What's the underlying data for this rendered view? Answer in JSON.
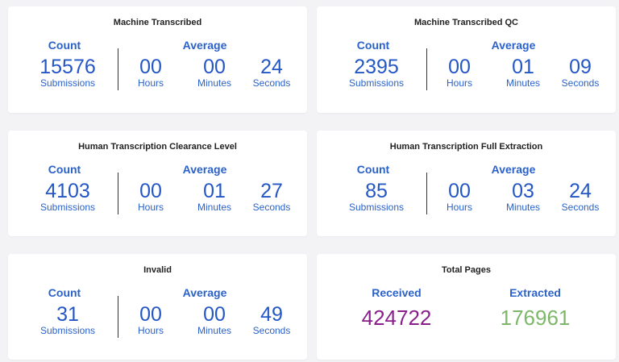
{
  "cards": [
    {
      "title": "Machine Transcribed",
      "count_header": "Count",
      "average_header": "Average",
      "count": "15576",
      "count_label": "Submissions",
      "hours": "00",
      "hours_label": "Hours",
      "minutes": "00",
      "minutes_label": "Minutes",
      "seconds": "24",
      "seconds_label": "Seconds"
    },
    {
      "title": "Machine Transcribed QC",
      "count_header": "Count",
      "average_header": "Average",
      "count": "2395",
      "count_label": "Submissions",
      "hours": "00",
      "hours_label": "Hours",
      "minutes": "01",
      "minutes_label": "Minutes",
      "seconds": "09",
      "seconds_label": "Seconds"
    },
    {
      "title": "Human Transcription Clearance Level",
      "count_header": "Count",
      "average_header": "Average",
      "count": "4103",
      "count_label": "Submissions",
      "hours": "00",
      "hours_label": "Hours",
      "minutes": "01",
      "minutes_label": "Minutes",
      "seconds": "27",
      "seconds_label": "Seconds"
    },
    {
      "title": "Human Transcription Full Extraction",
      "count_header": "Count",
      "average_header": "Average",
      "count": "85",
      "count_label": "Submissions",
      "hours": "00",
      "hours_label": "Hours",
      "minutes": "03",
      "minutes_label": "Minutes",
      "seconds": "24",
      "seconds_label": "Seconds"
    },
    {
      "title": "Invalid",
      "count_header": "Count",
      "average_header": "Average",
      "count": "31",
      "count_label": "Submissions",
      "hours": "00",
      "hours_label": "Hours",
      "minutes": "00",
      "minutes_label": "Minutes",
      "seconds": "49",
      "seconds_label": "Seconds"
    }
  ],
  "total_pages": {
    "title": "Total Pages",
    "received_label": "Received",
    "received_value": "424722",
    "extracted_label": "Extracted",
    "extracted_value": "176961"
  },
  "colors": {
    "accent": "#2457c5",
    "received": "#8a1f8c",
    "extracted": "#7db86a"
  }
}
